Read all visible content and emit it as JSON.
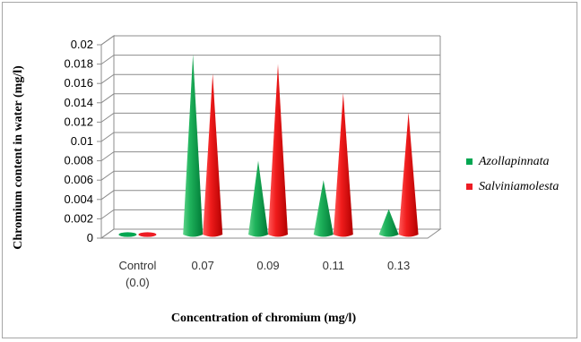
{
  "chart_data": {
    "type": "bar",
    "title": "",
    "xlabel": "Concentration of chromium (mg/l)",
    "ylabel": "Chromium content in water (mg/l)",
    "ylim": [
      0,
      0.02
    ],
    "yticks": [
      "0",
      "0.002",
      "0.004",
      "0.006",
      "0.008",
      "0.01",
      "0.012",
      "0.014",
      "0.016",
      "0.018",
      "0.02"
    ],
    "categories": [
      [
        "Control",
        "(0.0)"
      ],
      [
        "0.07"
      ],
      [
        "0.09"
      ],
      [
        "0.11"
      ],
      [
        "0.13"
      ]
    ],
    "series": [
      {
        "name": "Azollapinnata",
        "color": "#00a651",
        "values": [
          0.0,
          0.019,
          0.008,
          0.006,
          0.003
        ]
      },
      {
        "name": "Salviniamolesta",
        "color": "#ed1c24",
        "values": [
          0.0,
          0.017,
          0.018,
          0.015,
          0.013
        ]
      }
    ],
    "legend_position": "right",
    "grid": true
  }
}
